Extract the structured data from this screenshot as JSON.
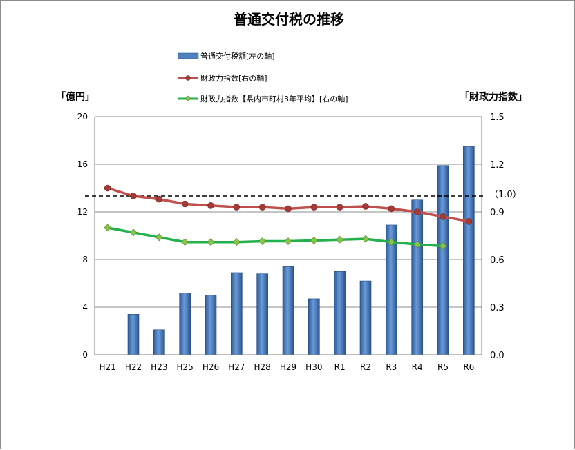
{
  "chart_data": {
    "type": "bar",
    "title": "普通交付税の推移",
    "left_axis_unit": "「億円」",
    "right_axis_unit": "「財政力指数」",
    "reference_label": "（1.0）",
    "reference_value": 1.0,
    "categories": [
      "H21",
      "H22",
      "H23",
      "H25",
      "H26",
      "H27",
      "H28",
      "H29",
      "H30",
      "R1",
      "R2",
      "R3",
      "R4",
      "R5",
      "R6"
    ],
    "ylim_left": [
      0,
      20
    ],
    "yticks_left": [
      "0",
      "4",
      "8",
      "12",
      "16",
      "20"
    ],
    "yticks_left_values": [
      0,
      4,
      8,
      12,
      16,
      20
    ],
    "ylim_right": [
      0.0,
      1.5
    ],
    "yticks_right": [
      "0.0",
      "0.3",
      "0.6",
      "0.9",
      "1.2",
      "1.5"
    ],
    "yticks_right_values": [
      0.0,
      0.3,
      0.6,
      0.9,
      1.2,
      1.5
    ],
    "grid": true,
    "series": [
      {
        "name": "普通交付税額[左の軸]",
        "type": "bar",
        "axis": "left",
        "color": "#4f81bd",
        "values": [
          0,
          3.4,
          2.1,
          5.2,
          5.0,
          6.9,
          6.8,
          7.4,
          4.7,
          7.0,
          6.2,
          10.9,
          13.0,
          15.9,
          17.5
        ]
      },
      {
        "name": "財政力指数[右の軸]",
        "type": "line",
        "axis": "right",
        "color": "#c0504d",
        "values": [
          1.05,
          1.0,
          0.98,
          0.95,
          0.94,
          0.93,
          0.93,
          0.92,
          0.93,
          0.93,
          0.935,
          0.92,
          0.9,
          0.87,
          0.84
        ]
      },
      {
        "name": "財政力指数【県内市町村3年平均】[右の軸]",
        "type": "line",
        "axis": "right",
        "color": "#22b14c",
        "values": [
          0.8,
          0.77,
          0.74,
          0.71,
          0.71,
          0.71,
          0.715,
          0.715,
          0.72,
          0.725,
          0.73,
          0.71,
          0.695,
          0.685,
          null
        ]
      }
    ]
  }
}
